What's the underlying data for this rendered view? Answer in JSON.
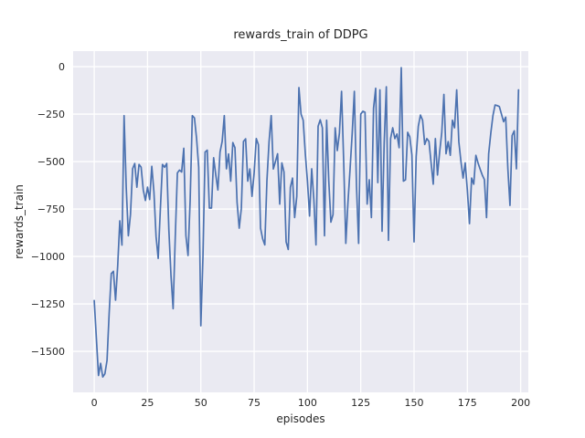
{
  "window": {
    "background": "#ffffff"
  },
  "chart_data": {
    "type": "line",
    "title": "rewards_train of DDPG",
    "xlabel": "episodes",
    "ylabel": "rewards_train",
    "x_start": 0,
    "x_step": 1,
    "x_ticks": [
      0,
      25,
      50,
      75,
      100,
      125,
      150,
      175,
      200
    ],
    "x_tick_labels": [
      "0",
      "25",
      "50",
      "75",
      "100",
      "125",
      "150",
      "175",
      "200"
    ],
    "y_ticks": [
      0,
      -250,
      -500,
      -750,
      -1000,
      -1250,
      -1500
    ],
    "y_tick_labels": [
      "0",
      "−250",
      "−500",
      "−750",
      "−1000",
      "−1250",
      "−1500"
    ],
    "xlim": [
      -9.9,
      203.6
    ],
    "ylim": [
      -1716,
      82
    ],
    "grid": true,
    "legend_position": "none",
    "style": {
      "line_color": "#4c72b0",
      "plot_background": "#eaeaf2",
      "grid_color": "#ffffff",
      "text_color": "#262626",
      "line_width": 1.7
    },
    "series": [
      {
        "name": "rewards_train",
        "values": [
          -1232,
          -1430,
          -1627,
          -1563,
          -1635,
          -1618,
          -1548,
          -1300,
          -1090,
          -1078,
          -1230,
          -1050,
          -812,
          -940,
          -258,
          -635,
          -891,
          -779,
          -538,
          -510,
          -635,
          -515,
          -530,
          -650,
          -705,
          -635,
          -700,
          -525,
          -660,
          -895,
          -1010,
          -755,
          -515,
          -530,
          -510,
          -860,
          -1100,
          -1275,
          -900,
          -560,
          -545,
          -555,
          -430,
          -890,
          -995,
          -700,
          -258,
          -270,
          -378,
          -530,
          -1365,
          -1000,
          -450,
          -440,
          -745,
          -745,
          -480,
          -570,
          -650,
          -450,
          -394,
          -258,
          -538,
          -460,
          -603,
          -400,
          -427,
          -715,
          -851,
          -747,
          -394,
          -380,
          -603,
          -539,
          -683,
          -560,
          -379,
          -411,
          -851,
          -907,
          -939,
          -600,
          -395,
          -258,
          -539,
          -500,
          -459,
          -724,
          -507,
          -555,
          -923,
          -963,
          -635,
          -587,
          -795,
          -683,
          -110,
          -250,
          -282,
          -458,
          -603,
          -787,
          -538,
          -700,
          -939,
          -314,
          -280,
          -322,
          -891,
          -282,
          -600,
          -819,
          -779,
          -322,
          -442,
          -350,
          -130,
          -500,
          -931,
          -715,
          -538,
          -350,
          -130,
          -627,
          -931,
          -250,
          -235,
          -240,
          -724,
          -596,
          -795,
          -219,
          -114,
          -611,
          -122,
          -867,
          -400,
          -106,
          -915,
          -379,
          -322,
          -379,
          -355,
          -427,
          -5,
          -603,
          -596,
          -346,
          -370,
          -466,
          -923,
          -474,
          -314,
          -255,
          -282,
          -410,
          -379,
          -394,
          -507,
          -619,
          -379,
          -571,
          -450,
          -347,
          -146,
          -459,
          -395,
          -467,
          -282,
          -322,
          -122,
          -395,
          -500,
          -587,
          -507,
          -650,
          -827,
          -587,
          -619,
          -467,
          -507,
          -540,
          -571,
          -595,
          -795,
          -459,
          -350,
          -258,
          -202,
          -205,
          -210,
          -250,
          -290,
          -266,
          -538,
          -731,
          -363,
          -338,
          -538,
          -122
        ]
      }
    ]
  }
}
